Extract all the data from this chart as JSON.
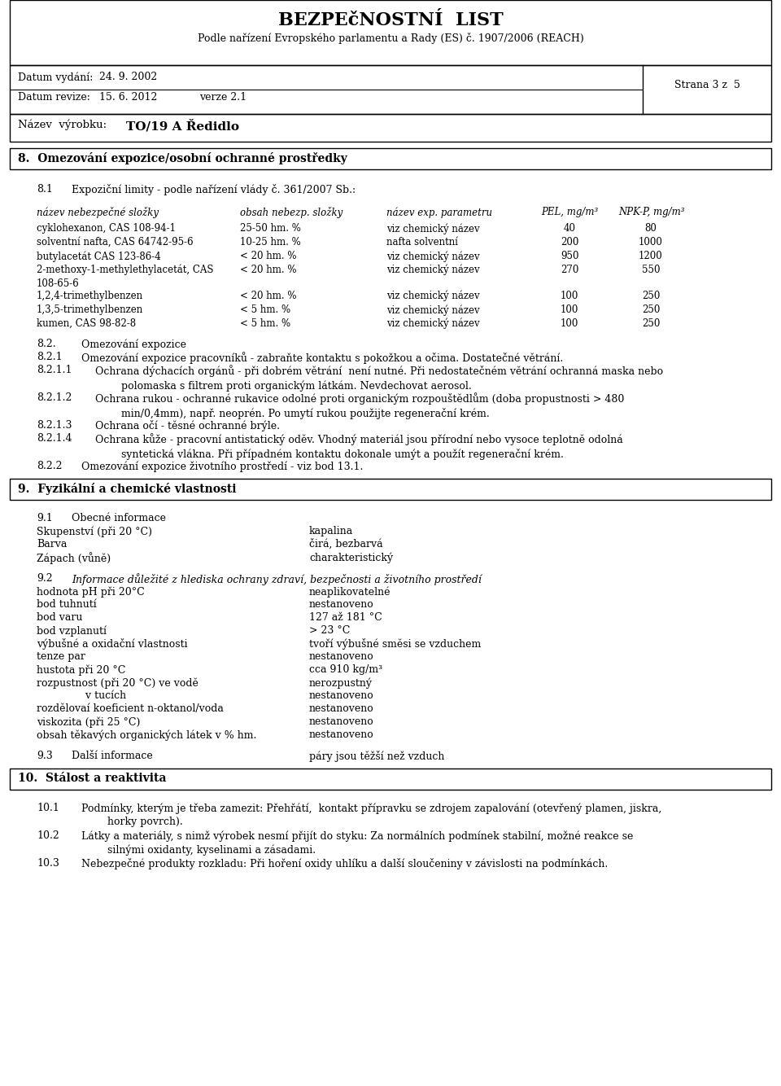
{
  "title": "BEZPEčNOSTNÍ  LIST",
  "subtitle": "Podle nařízení Evropského parlamentu a Rady (ES) č. 1907/2006 (REACH)",
  "datum_vydani_label": "Datum vydání:",
  "datum_vydani_val": "24. 9. 2002",
  "datum_revize_label": "Datum revize:",
  "datum_revize_val": "15. 6. 2012",
  "verze_label": "verze 2.1",
  "strana": "Strana 3 z  5",
  "nazev_label": "Název  výrobku:",
  "nazev_val": "TO/19 A Ředidlo",
  "section8_title": "8.  Omezování expozice/osobní ochranné prostředky",
  "s8_1_label": "8.1",
  "s8_1_text": "Expoziční limity - podle nařízení vlády č. 361/2007 Sb.:",
  "table_header": [
    "název nebezpečné složky",
    "obsah nebezp. složky",
    "název exp. parametru",
    "PEL, mg/m³",
    "NPK-P, mg/m³"
  ],
  "table_rows": [
    [
      "cyklohexanon, CAS 108-94-1",
      "25-50 hm. %",
      "viz chemický název",
      "40",
      "80"
    ],
    [
      "solventní nafta, CAS 64742-95-6",
      "10-25 hm. %",
      "nafta solventní",
      "200",
      "1000"
    ],
    [
      "butylacetát CAS 123-86-4",
      "< 20 hm. %",
      "viz chemický název",
      "950",
      "1200"
    ],
    [
      "2-methoxy-1-methylethylacetát, CAS\n108-65-6",
      "< 20 hm. %",
      "viz chemický název",
      "270",
      "550"
    ],
    [
      "1,2,4-trimethylbenzen",
      "< 20 hm. %",
      "viz chemický název",
      "100",
      "250"
    ],
    [
      "1,3,5-trimethylbenzen",
      "< 5 hm. %",
      "viz chemický název",
      "100",
      "250"
    ],
    [
      "kumen, CAS 98-82-8",
      "< 5 hm. %",
      "viz chemický název",
      "100",
      "250"
    ]
  ],
  "s8_2_label": "8.2.",
  "s8_2_text": "Omezování expozice",
  "s8_21_label": "8.2.1",
  "s8_21_text": "Omezování expozice pracovníků - zabraňte kontaktu s pokožkou a očima. Dostatečné větrání.",
  "s8_211_label": "8.2.1.1",
  "s8_211_text": "Ochrana dýchacích orgánů - při dobrém větrání  není nutné. Při nedostatečném větrání ochranná maska nebo\n        polomaska s filtrem proti organickým látkám. Nevdechovat aerosol.",
  "s8_212_label": "8.2.1.2",
  "s8_212_text": "Ochrana rukou - ochranné rukavice odolné proti organickým rozpouštědlům (doba propustnosti > 480\n        min/0,4mm), např. neoprén. Po umytí rukou použijte regenerační krém.",
  "s8_213_label": "8.2.1.3",
  "s8_213_text": "Ochrana očí - těsné ochranné brýle.",
  "s8_214_label": "8.2.1.4",
  "s8_214_text": "Ochrana kůže - pracovní antistatický oděv. Vhodný materiál jsou přírodní nebo vysoce teplotně odolná\n        syntetická vlákna. Při případném kontaktu dokonale umýt a použít regenerační krém.",
  "s8_22_label": "8.2.2",
  "s8_22_text": "Omezování expozice životního prostředí - viz bod 13.1.",
  "section9_title": "9.  Fyzikální a chemické vlastnosti",
  "s9_1_label": "9.1",
  "s9_1_text": "Obecné informace",
  "properties": [
    [
      "Skupenství (při 20 °C)",
      "kapalina"
    ],
    [
      "Barva",
      "čirá, bezbarvá"
    ],
    [
      "Zápach (vůně)",
      "charakteristický"
    ]
  ],
  "s9_2_label": "9.2",
  "s9_2_text": "Informace důležité z hlediska ochrany zdraví, bezpečnosti a životního prostředí",
  "properties2": [
    [
      "hodnota pH při 20°C",
      "neaplikovatelné"
    ],
    [
      "bod tuhnutí",
      "nestanoveno"
    ],
    [
      "bod varu",
      "127 až 181 °C"
    ],
    [
      "bod vzplanutí",
      "> 23 °C"
    ],
    [
      "výbušné a oxidační vlastnosti",
      "tvoří výbušné směsi se vzduchem"
    ],
    [
      "tenze par",
      "nestanoveno"
    ],
    [
      "hustota při 20 °C",
      "cca 910 kg/m³"
    ],
    [
      "rozpustnost (při 20 °C) ve vodě",
      "nerozpustný"
    ],
    [
      "               v tucích",
      "nestanoveno"
    ],
    [
      "rozdělovaí koeficient n-oktanol/voda",
      "nestanoveno"
    ],
    [
      "viskozita (při 25 °C)",
      "nestanoveno"
    ],
    [
      "obsah těkavých organických látek v % hm.",
      "nestanoveno"
    ]
  ],
  "s9_3_label": "9.3",
  "s9_3_text": "Další informace",
  "s9_3_val": "páry jsou těžší než vzduch",
  "section10_title": "10.  Stálost a reaktivita",
  "s10_1_label": "10.1",
  "s10_1_text": "Podmínky, kterým je třeba zamezit: Přehřátí,  kontakt přípravku se zdrojem zapalování (otevřený plamen, jiskra,\n        horky povrch).",
  "s10_2_label": "10.2",
  "s10_2_text": "Látky a materiály, s nimž výrobek nesmí přijít do styku: Za normálních podmínek stabilní, možné reakce se\n        silnými oxidanty, kyselinami a zásadami.",
  "s10_3_label": "10.3",
  "s10_3_text": "Nebezpečné produkty rozkladu: Při hoření oxidy uhlíku a další sloučeniny v závislosti na podmínkách.",
  "bg_color": "#ffffff"
}
